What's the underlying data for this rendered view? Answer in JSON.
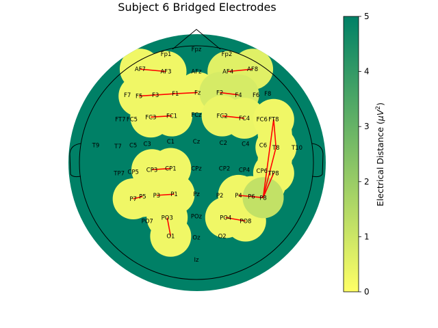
{
  "chart_data": {
    "type": "heatmap",
    "title": "Subject 6 Bridged Electrodes",
    "colorbar": {
      "label_main": "Electrical Distance (",
      "label_mu": "μ",
      "label_unit": "V",
      "label_exp": "2",
      "label_close": ")",
      "range": [
        0,
        5
      ],
      "ticks": [
        0,
        1,
        2,
        3,
        4,
        5
      ],
      "colormap": "summer_r",
      "color_low": "#ffff66",
      "color_high": "#008066"
    },
    "background_value": 5,
    "low_regions": [
      {
        "value": 0.3,
        "electrodes": [
          "AF7",
          "AF3"
        ]
      },
      {
        "value": 0.6,
        "electrodes": [
          "AF4",
          "AF8"
        ]
      },
      {
        "value": 0.3,
        "electrodes": [
          "F5",
          "F3",
          "F1",
          "Fz"
        ]
      },
      {
        "value": 0.8,
        "electrodes": [
          "F2",
          "F4"
        ]
      },
      {
        "value": 0.3,
        "electrodes": [
          "FC3",
          "FC1"
        ]
      },
      {
        "value": 0.4,
        "electrodes": [
          "FC2",
          "FC4"
        ]
      },
      {
        "value": 0.3,
        "electrodes": [
          "FT8",
          "T8",
          "TP8",
          "P8"
        ]
      },
      {
        "value": 0.3,
        "electrodes": [
          "CP3",
          "CP1"
        ]
      },
      {
        "value": 0.3,
        "electrodes": [
          "P7",
          "P5",
          "P3",
          "P1"
        ]
      },
      {
        "value": 0.3,
        "electrodes": [
          "P4",
          "P6"
        ]
      },
      {
        "value": 0.3,
        "electrodes": [
          "PO3",
          "O1"
        ]
      },
      {
        "value": 0.3,
        "electrodes": [
          "PO4",
          "PO8"
        ]
      },
      {
        "value": 1.2,
        "electrodes": [
          "P8"
        ]
      }
    ],
    "bridges": [
      [
        "AF7",
        "AF3"
      ],
      [
        "AF4",
        "AF8"
      ],
      [
        "F5",
        "F1"
      ],
      [
        "F1",
        "Fz"
      ],
      [
        "F2",
        "F4"
      ],
      [
        "FC3",
        "FC1"
      ],
      [
        "FC2",
        "FC4"
      ],
      [
        "FT8",
        "T8"
      ],
      [
        "FT8",
        "P8"
      ],
      [
        "T8",
        "P8"
      ],
      [
        "TP8",
        "P8"
      ],
      [
        "CP3",
        "CP1"
      ],
      [
        "P7",
        "P5"
      ],
      [
        "P3",
        "P1"
      ],
      [
        "P4",
        "P6"
      ],
      [
        "P6",
        "P8"
      ],
      [
        "PO3",
        "O1"
      ],
      [
        "PO4",
        "PO8"
      ]
    ],
    "electrodes": [
      {
        "name": "Fpz",
        "x": 0,
        "y": 0.97
      },
      {
        "name": "Fp1",
        "x": -0.26,
        "y": 0.93
      },
      {
        "name": "Fp2",
        "x": 0.26,
        "y": 0.93
      },
      {
        "name": "AF7",
        "x": -0.48,
        "y": 0.8
      },
      {
        "name": "AF3",
        "x": -0.26,
        "y": 0.78
      },
      {
        "name": "AFz",
        "x": 0,
        "y": 0.78
      },
      {
        "name": "AF4",
        "x": 0.27,
        "y": 0.78
      },
      {
        "name": "AF8",
        "x": 0.48,
        "y": 0.8
      },
      {
        "name": "F7",
        "x": -0.59,
        "y": 0.58
      },
      {
        "name": "F5",
        "x": -0.49,
        "y": 0.57
      },
      {
        "name": "F3",
        "x": -0.35,
        "y": 0.58
      },
      {
        "name": "F1",
        "x": -0.18,
        "y": 0.59
      },
      {
        "name": "Fz",
        "x": 0.01,
        "y": 0.6
      },
      {
        "name": "F2",
        "x": 0.2,
        "y": 0.6
      },
      {
        "name": "F4",
        "x": 0.36,
        "y": 0.58
      },
      {
        "name": "F6",
        "x": 0.51,
        "y": 0.58
      },
      {
        "name": "F8",
        "x": 0.61,
        "y": 0.59
      },
      {
        "name": "FT7",
        "x": -0.65,
        "y": 0.37
      },
      {
        "name": "FC5",
        "x": -0.55,
        "y": 0.37
      },
      {
        "name": "FC3",
        "x": -0.39,
        "y": 0.39
      },
      {
        "name": "FC1",
        "x": -0.21,
        "y": 0.4
      },
      {
        "name": "FCz",
        "x": 0,
        "y": 0.41
      },
      {
        "name": "FC2",
        "x": 0.22,
        "y": 0.4
      },
      {
        "name": "FC4",
        "x": 0.41,
        "y": 0.38
      },
      {
        "name": "FC6",
        "x": 0.56,
        "y": 0.37
      },
      {
        "name": "FT8",
        "x": 0.66,
        "y": 0.37
      },
      {
        "name": "T9",
        "x": -0.86,
        "y": 0.15
      },
      {
        "name": "T7",
        "x": -0.67,
        "y": 0.14
      },
      {
        "name": "C5",
        "x": -0.54,
        "y": 0.15
      },
      {
        "name": "C3",
        "x": -0.42,
        "y": 0.16
      },
      {
        "name": "C1",
        "x": -0.22,
        "y": 0.18
      },
      {
        "name": "Cz",
        "x": 0,
        "y": 0.18
      },
      {
        "name": "C2",
        "x": 0.23,
        "y": 0.17
      },
      {
        "name": "C4",
        "x": 0.42,
        "y": 0.16
      },
      {
        "name": "C6",
        "x": 0.57,
        "y": 0.15
      },
      {
        "name": "T8",
        "x": 0.68,
        "y": 0.13
      },
      {
        "name": "T10",
        "x": 0.86,
        "y": 0.13
      },
      {
        "name": "TP7",
        "x": -0.66,
        "y": -0.09
      },
      {
        "name": "CP5",
        "x": -0.54,
        "y": -0.08
      },
      {
        "name": "CP3",
        "x": -0.38,
        "y": -0.06
      },
      {
        "name": "CP1",
        "x": -0.22,
        "y": -0.05
      },
      {
        "name": "CPz",
        "x": 0,
        "y": -0.05
      },
      {
        "name": "CP2",
        "x": 0.24,
        "y": -0.05
      },
      {
        "name": "CP4",
        "x": 0.41,
        "y": -0.06
      },
      {
        "name": "CP6",
        "x": 0.56,
        "y": -0.07
      },
      {
        "name": "TP8",
        "x": 0.66,
        "y": -0.09
      },
      {
        "name": "P7",
        "x": -0.54,
        "y": -0.31
      },
      {
        "name": "P5",
        "x": -0.46,
        "y": -0.29
      },
      {
        "name": "P3",
        "x": -0.34,
        "y": -0.28
      },
      {
        "name": "P1",
        "x": -0.19,
        "y": -0.27
      },
      {
        "name": "Pz",
        "x": 0,
        "y": -0.27
      },
      {
        "name": "P2",
        "x": 0.2,
        "y": -0.28
      },
      {
        "name": "P4",
        "x": 0.36,
        "y": -0.28
      },
      {
        "name": "P6",
        "x": 0.47,
        "y": -0.29
      },
      {
        "name": "P8",
        "x": 0.57,
        "y": -0.3
      },
      {
        "name": "PO7",
        "x": -0.42,
        "y": -0.5
      },
      {
        "name": "PO3",
        "x": -0.25,
        "y": -0.47
      },
      {
        "name": "POz",
        "x": 0,
        "y": -0.46
      },
      {
        "name": "PO4",
        "x": 0.25,
        "y": -0.47
      },
      {
        "name": "PO8",
        "x": 0.42,
        "y": -0.5
      },
      {
        "name": "O1",
        "x": -0.22,
        "y": -0.63
      },
      {
        "name": "Oz",
        "x": 0,
        "y": -0.64
      },
      {
        "name": "O2",
        "x": 0.22,
        "y": -0.63
      },
      {
        "name": "Iz",
        "x": 0,
        "y": -0.83
      }
    ]
  }
}
